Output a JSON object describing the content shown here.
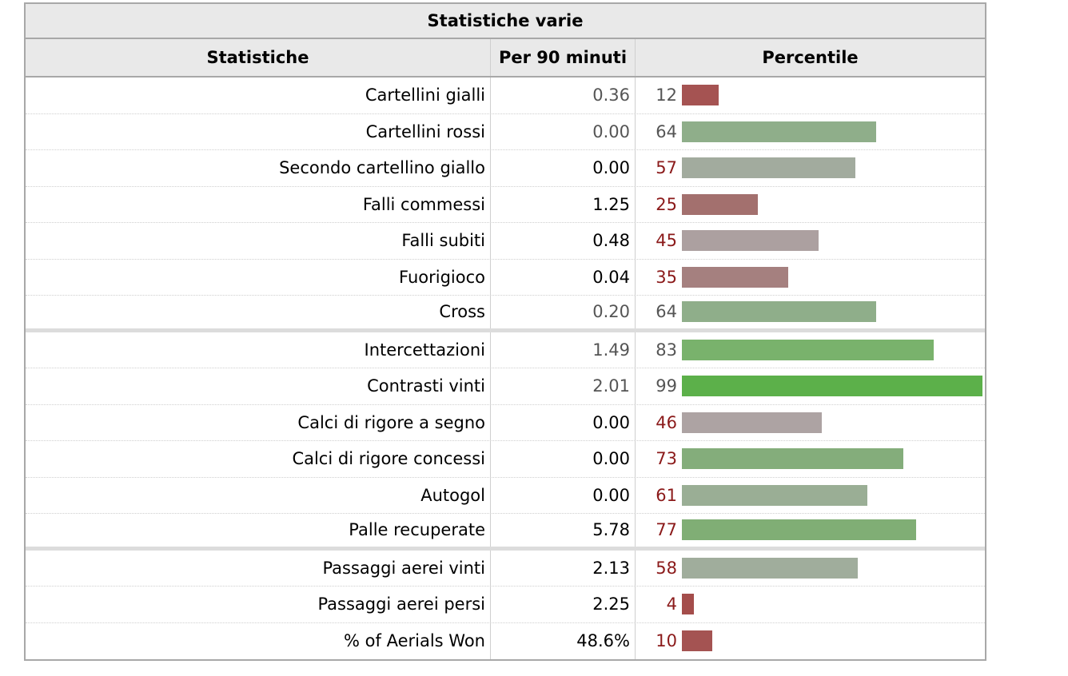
{
  "caption": "Statistiche varie",
  "headers": {
    "stat": "Statistiche",
    "per90": "Per 90 minuti",
    "percentile": "Percentile"
  },
  "rows": [
    {
      "label": "Cartellini gialli",
      "per90": "0.36",
      "percentile": "12",
      "per90_dim": true,
      "pct_color": "high",
      "bar_color": "#a55352",
      "group_end": false
    },
    {
      "label": "Cartellini rossi",
      "per90": "0.00",
      "percentile": "64",
      "per90_dim": true,
      "pct_color": "high",
      "bar_color": "#8fae8a",
      "group_end": false
    },
    {
      "label": "Secondo cartellino giallo",
      "per90": "0.00",
      "percentile": "57",
      "per90_dim": false,
      "pct_color": "low",
      "bar_color": "#a2ab9e",
      "group_end": false
    },
    {
      "label": "Falli commessi",
      "per90": "1.25",
      "percentile": "25",
      "per90_dim": false,
      "pct_color": "low",
      "bar_color": "#a3706e",
      "group_end": false
    },
    {
      "label": "Falli subiti",
      "per90": "0.48",
      "percentile": "45",
      "per90_dim": false,
      "pct_color": "low",
      "bar_color": "#aca0a0",
      "group_end": false
    },
    {
      "label": "Fuorigioco",
      "per90": "0.04",
      "percentile": "35",
      "per90_dim": false,
      "pct_color": "low",
      "bar_color": "#a5807f",
      "group_end": false
    },
    {
      "label": "Cross",
      "per90": "0.20",
      "percentile": "64",
      "per90_dim": true,
      "pct_color": "high",
      "bar_color": "#8fae8a",
      "group_end": true
    },
    {
      "label": "Intercettazioni",
      "per90": "1.49",
      "percentile": "83",
      "per90_dim": true,
      "pct_color": "high",
      "bar_color": "#79b26c",
      "group_end": false
    },
    {
      "label": "Contrasti vinti",
      "per90": "2.01",
      "percentile": "99",
      "per90_dim": true,
      "pct_color": "high",
      "bar_color": "#5cb04a",
      "group_end": false
    },
    {
      "label": "Calci di rigore a segno",
      "per90": "0.00",
      "percentile": "46",
      "per90_dim": false,
      "pct_color": "low",
      "bar_color": "#ada3a3",
      "group_end": false
    },
    {
      "label": "Calci di rigore concessi",
      "per90": "0.00",
      "percentile": "73",
      "per90_dim": false,
      "pct_color": "low",
      "bar_color": "#84ad7b",
      "group_end": false
    },
    {
      "label": "Autogol",
      "per90": "0.00",
      "percentile": "61",
      "per90_dim": false,
      "pct_color": "low",
      "bar_color": "#9aae95",
      "group_end": false
    },
    {
      "label": "Palle recuperate",
      "per90": "5.78",
      "percentile": "77",
      "per90_dim": false,
      "pct_color": "low",
      "bar_color": "#80ae75",
      "group_end": true
    },
    {
      "label": "Passaggi aerei vinti",
      "per90": "2.13",
      "percentile": "58",
      "per90_dim": false,
      "pct_color": "low",
      "bar_color": "#a0ad9c",
      "group_end": false
    },
    {
      "label": "Passaggi aerei persi",
      "per90": "2.25",
      "percentile": "4",
      "per90_dim": false,
      "pct_color": "low",
      "bar_color": "#a44d4b",
      "group_end": false
    },
    {
      "label": "% of Aerials Won",
      "per90": "48.6%",
      "percentile": "10",
      "per90_dim": false,
      "pct_color": "low",
      "bar_color": "#a45352",
      "group_end": false
    }
  ]
}
